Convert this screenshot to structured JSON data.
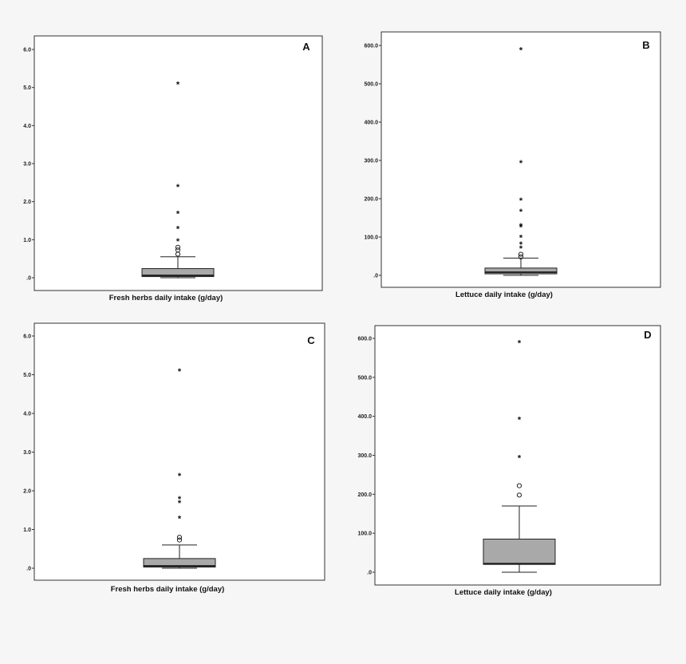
{
  "chart_data": [
    {
      "type": "boxplot",
      "panel_label": "A",
      "xlabel": "Fresh herbs daily intake (g/day)",
      "ylim": [
        0,
        6
      ],
      "y_ticks": [
        ".0",
        "1.0",
        "2.0",
        "3.0",
        "4.0",
        "5.0",
        "6.0"
      ],
      "box": {
        "whisker_low": 0.0,
        "q1": 0.03,
        "median": 0.06,
        "q3": 0.24,
        "whisker_high": 0.55
      },
      "outliers": [
        0.62,
        0.73,
        0.8
      ],
      "extremes": [
        0.98,
        1.3,
        1.7,
        2.4,
        5.1
      ]
    },
    {
      "type": "boxplot",
      "panel_label": "B",
      "xlabel": "Lettuce daily intake (g/day)",
      "ylim": [
        0,
        600
      ],
      "y_ticks": [
        ".0",
        "100.0",
        "200.0",
        "300.0",
        "400.0",
        "500.0",
        "600.0"
      ],
      "box": {
        "whisker_low": 0,
        "q1": 4,
        "median": 8,
        "q3": 19,
        "whisker_high": 45
      },
      "outliers": [
        48,
        55
      ],
      "extremes": [
        72,
        82,
        100,
        127,
        130,
        168,
        197,
        295,
        590
      ]
    },
    {
      "type": "boxplot",
      "panel_label": "C",
      "xlabel": "Fresh herbs daily intake (g/day)",
      "ylim": [
        0,
        6
      ],
      "y_ticks": [
        ".0",
        "1.0",
        "2.0",
        "3.0",
        "4.0",
        "5.0",
        "6.0"
      ],
      "box": {
        "whisker_low": 0.0,
        "q1": 0.03,
        "median": 0.06,
        "q3": 0.25,
        "whisker_high": 0.6
      },
      "outliers": [
        0.73,
        0.8
      ],
      "extremes": [
        1.3,
        1.7,
        1.8,
        2.4,
        5.1
      ]
    },
    {
      "type": "boxplot",
      "panel_label": "D",
      "xlabel": "Lettuce daily intake (g/day)",
      "ylim": [
        0,
        600
      ],
      "y_ticks": [
        ".0",
        "100.0",
        "200.0",
        "300.0",
        "400.0",
        "500.0",
        "600.0"
      ],
      "box": {
        "whisker_low": 0,
        "q1": 20,
        "median": 22,
        "q3": 85,
        "whisker_high": 170
      },
      "outliers": [
        198,
        222
      ],
      "extremes": [
        295,
        393,
        590
      ]
    }
  ],
  "colors": {
    "background": "#f6f6f6",
    "plot_area": "#ffffff",
    "box_fill": "#a9a9a9",
    "stroke": "#222222"
  }
}
